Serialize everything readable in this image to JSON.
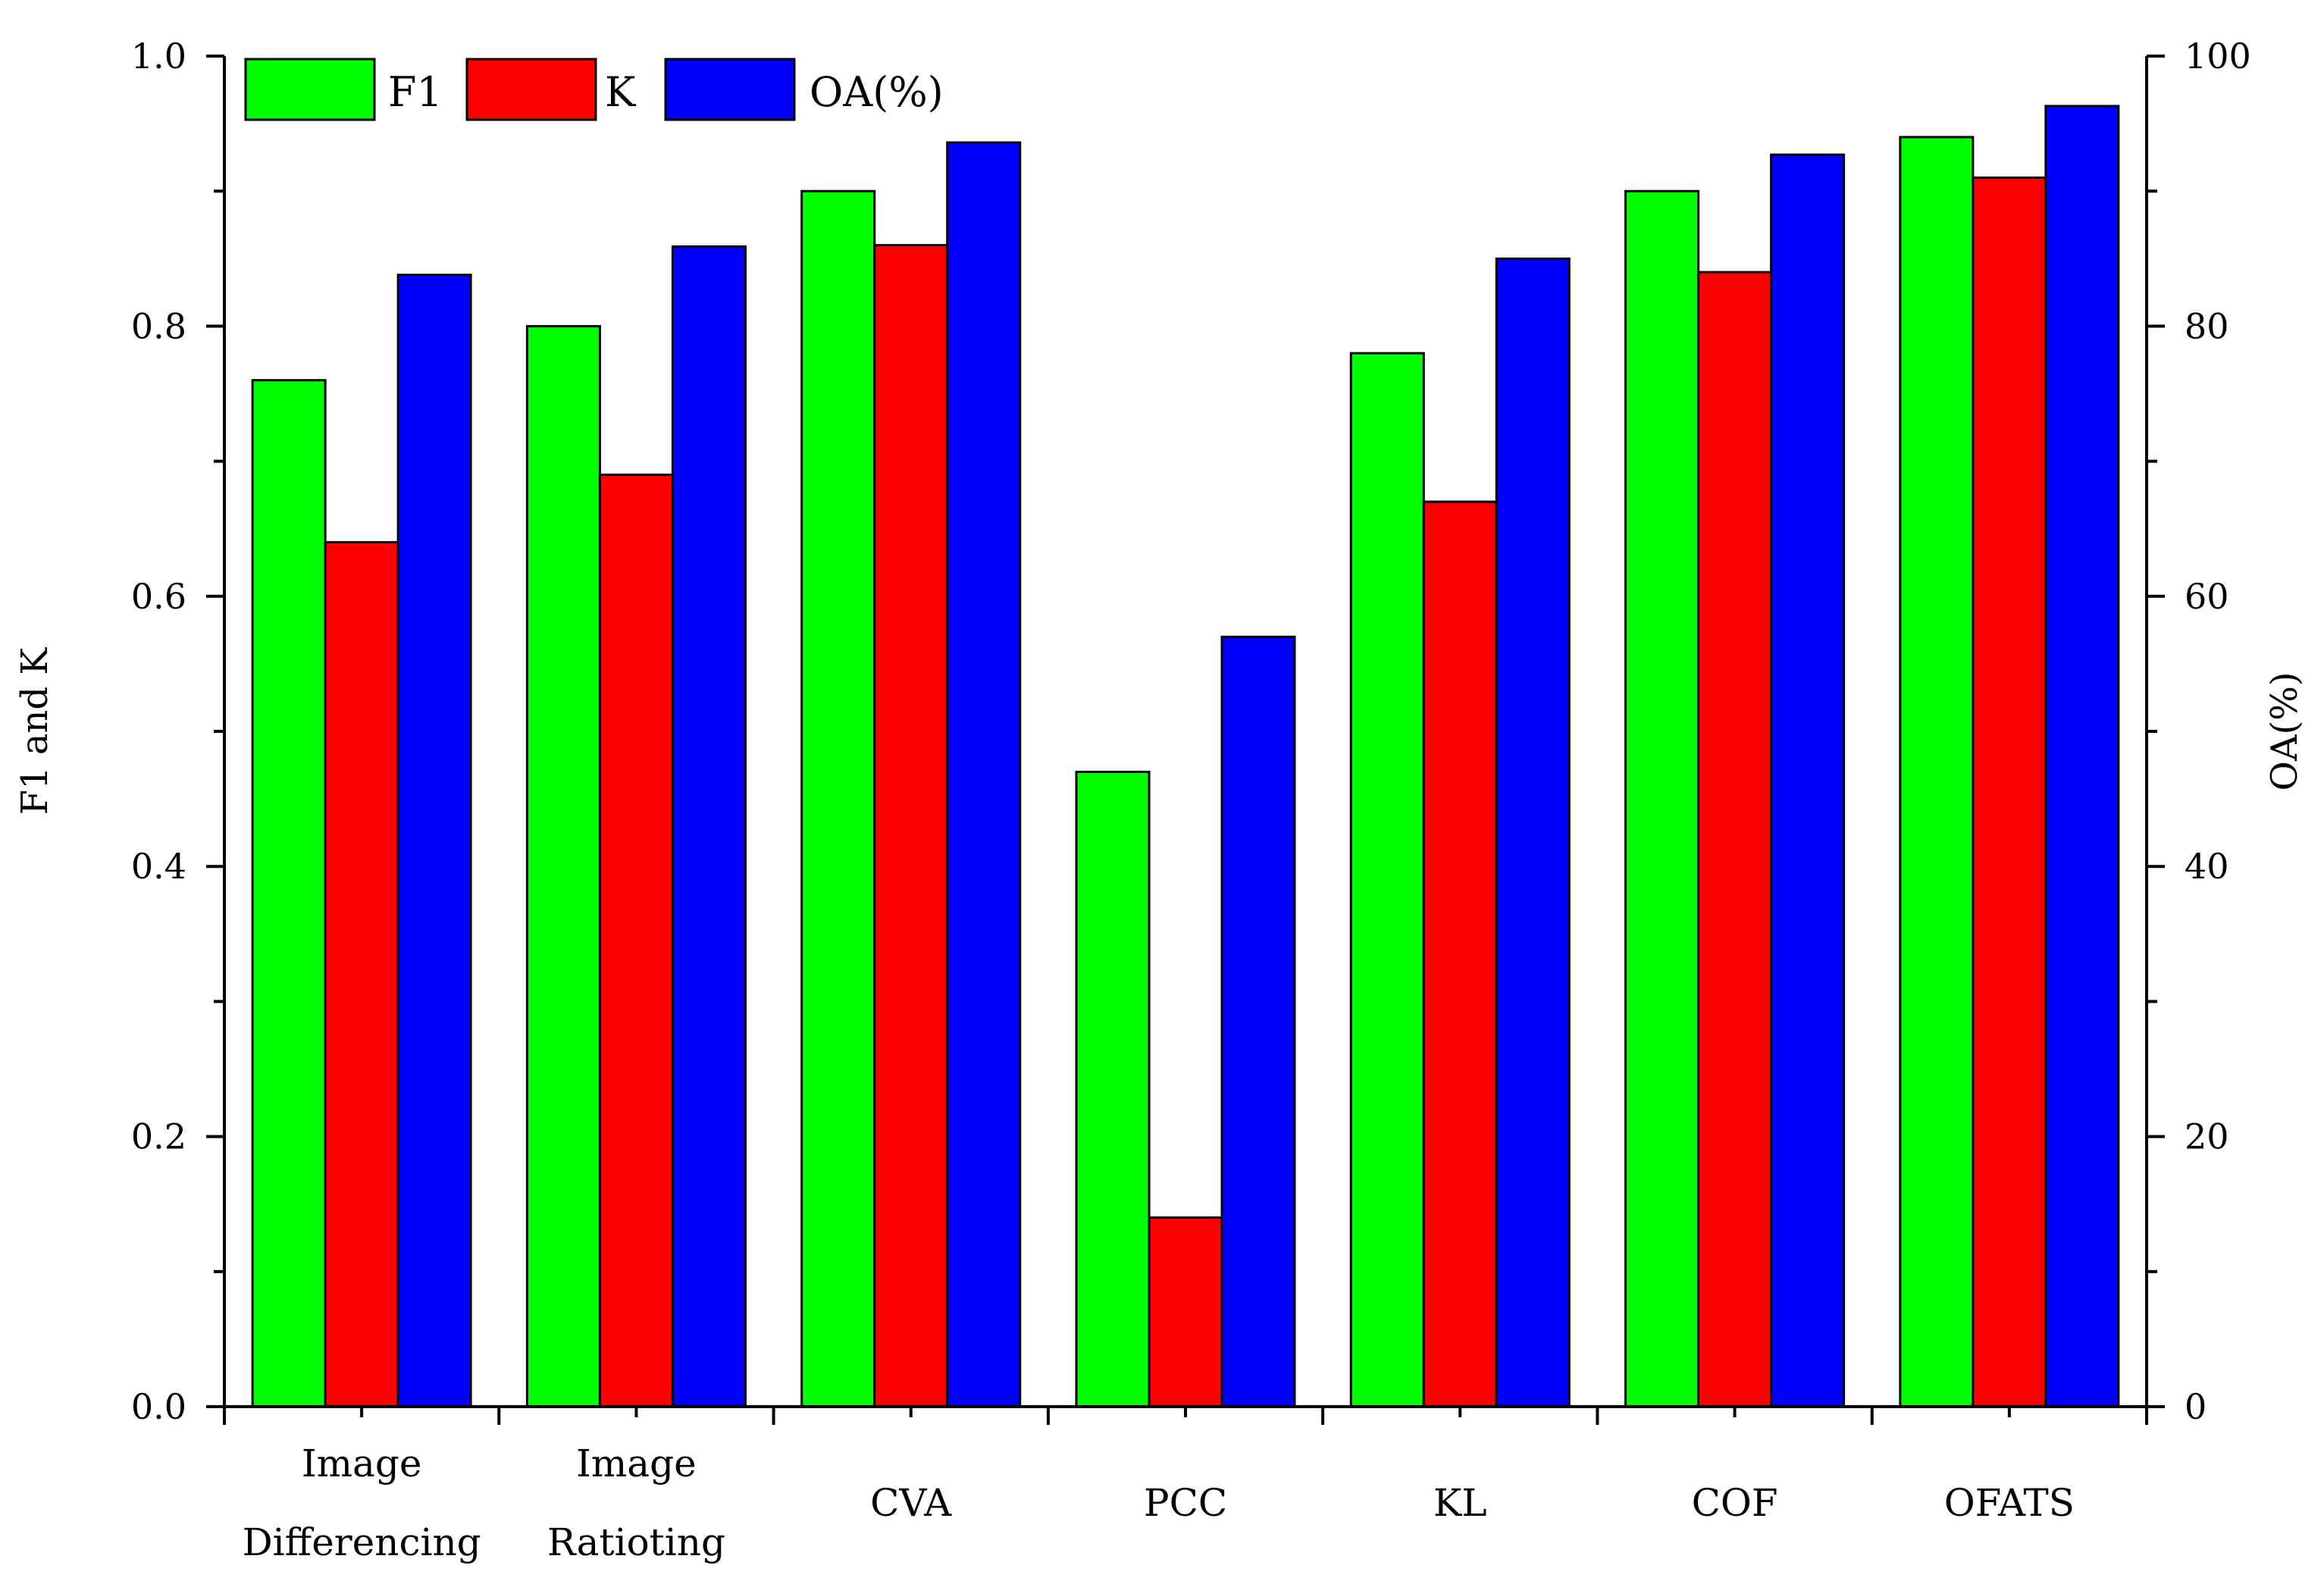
{
  "chart_data": {
    "type": "bar",
    "categories": [
      [
        "Image",
        "Differencing"
      ],
      [
        "Image",
        "Ratioting"
      ],
      [
        "CVA"
      ],
      [
        "PCC"
      ],
      [
        "KL"
      ],
      [
        "COF"
      ],
      [
        "OFATS"
      ]
    ],
    "series": [
      {
        "name": "F1",
        "axis": "left",
        "color": "#00ff00",
        "values": [
          0.76,
          0.8,
          0.9,
          0.47,
          0.78,
          0.9,
          0.94
        ]
      },
      {
        "name": "K",
        "axis": "left",
        "color": "#ff0000",
        "values": [
          0.64,
          0.69,
          0.86,
          0.14,
          0.67,
          0.84,
          0.91
        ]
      },
      {
        "name": "OA(%)",
        "axis": "right",
        "color": "#0000ff",
        "values": [
          83.8,
          85.9,
          93.6,
          57.0,
          85.0,
          92.7,
          96.3
        ]
      }
    ],
    "left_axis": {
      "label": "F1 and K",
      "ylim": [
        0,
        1.0
      ],
      "ticks": [
        "0.0",
        "0.2",
        "0.4",
        "0.6",
        "0.8",
        "1.0"
      ]
    },
    "right_axis": {
      "label": "OA(%)",
      "ylim": [
        0,
        100
      ],
      "ticks": [
        "0",
        "20",
        "40",
        "60",
        "80",
        "100"
      ]
    },
    "legend": {
      "placement": "top-left",
      "entries": [
        "F1",
        "K",
        "OA(%)"
      ]
    },
    "grid": false
  }
}
